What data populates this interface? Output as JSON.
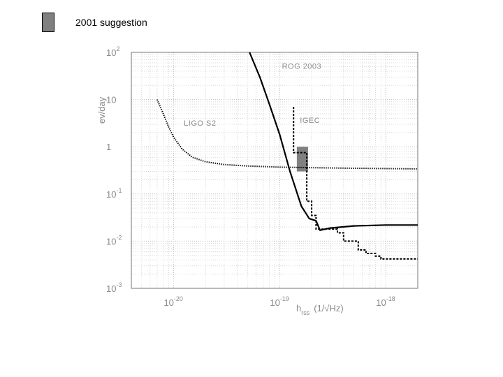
{
  "legend": {
    "label": "2001 suggestion",
    "color": "#808080"
  },
  "chart_data": {
    "type": "line",
    "xscale": "log",
    "yscale": "log",
    "xlim": [
      4e-21,
      2e-18
    ],
    "ylim": [
      0.001,
      100
    ],
    "xlabel_main": "h",
    "xlabel_sub": "rss",
    "xlabel_unit": "(1/√Hz)",
    "ylabel": "ev/day",
    "xticks": [
      {
        "base": "10",
        "exp": "-20",
        "value": 1e-20
      },
      {
        "base": "10",
        "exp": "-19",
        "value": 1e-19
      },
      {
        "base": "10",
        "exp": "-18",
        "value": 1e-18
      }
    ],
    "yticks": [
      {
        "base": "10",
        "exp": "-3",
        "value": 0.001
      },
      {
        "base": "10",
        "exp": "-2",
        "value": 0.01
      },
      {
        "base": "10",
        "exp": "-1",
        "value": 0.1
      },
      {
        "base": "1",
        "exp": "",
        "value": 1
      },
      {
        "base": "10",
        "exp": "",
        "value": 10
      },
      {
        "base": "10",
        "exp": "2",
        "value": 100
      }
    ],
    "grid": true,
    "series": [
      {
        "name": "ROG 2003",
        "style": "solid",
        "color": "#000000",
        "x": [
          5.2e-20,
          6.5e-20,
          8e-20,
          1e-19,
          1.25e-19,
          1.6e-19,
          1.9e-19,
          2.2e-19,
          2.4e-19,
          3e-19,
          5e-19,
          1e-18,
          2e-18
        ],
        "y": [
          100,
          30,
          8,
          1.8,
          0.3,
          0.055,
          0.03,
          0.027,
          0.017,
          0.019,
          0.021,
          0.022,
          0.022
        ]
      },
      {
        "name": "LIGO S2",
        "style": "dotted",
        "color": "#000000",
        "x": [
          7e-21,
          8e-21,
          9e-21,
          1e-20,
          1.2e-20,
          1.5e-20,
          2e-20,
          3e-20,
          5e-20,
          1e-19,
          2e-19,
          5e-19,
          2e-18
        ],
        "y": [
          10,
          5,
          2.6,
          1.6,
          0.9,
          0.6,
          0.48,
          0.42,
          0.39,
          0.37,
          0.36,
          0.35,
          0.34
        ]
      },
      {
        "name": "IGEC",
        "style": "dashed",
        "color": "#000000",
        "x": [
          1.35e-19,
          1.35e-19,
          1.8e-19,
          1.8e-19,
          2e-19,
          2e-19,
          2.2e-19,
          2.2e-19,
          3.5e-19,
          3.5e-19,
          4e-19,
          4e-19,
          5.5e-19,
          5.5e-19,
          6.5e-19,
          6.5e-19,
          8e-19,
          8e-19,
          9e-19,
          9e-19,
          2e-18
        ],
        "y": [
          7,
          0.75,
          0.75,
          0.07,
          0.07,
          0.035,
          0.035,
          0.018,
          0.018,
          0.015,
          0.015,
          0.01,
          0.01,
          0.0065,
          0.0065,
          0.0055,
          0.0055,
          0.0048,
          0.0048,
          0.0042,
          0.0042
        ]
      }
    ],
    "annotations": [
      {
        "text": "ROG 2003",
        "x": 1.05e-19,
        "y": 45
      },
      {
        "text": "IGEC",
        "x": 1.55e-19,
        "y": 3.2
      },
      {
        "text": "LIGO S2",
        "x": 1.25e-20,
        "y": 2.8
      }
    ],
    "region": {
      "x": [
        1.45e-19,
        1.85e-19
      ],
      "y": [
        0.3,
        1.0
      ],
      "color": "#808080"
    }
  }
}
